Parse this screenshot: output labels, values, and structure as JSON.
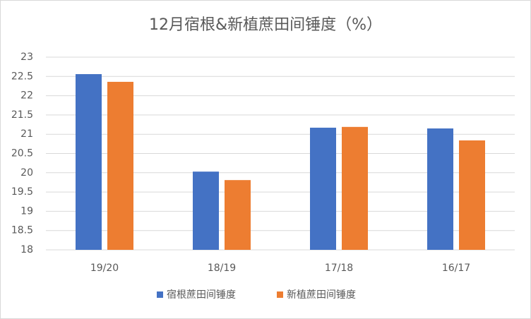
{
  "chart_data": {
    "type": "bar",
    "title": "12月宿根&新植蔗田间锤度（%）",
    "categories": [
      "19/20",
      "18/19",
      "17/18",
      "16/17"
    ],
    "series": [
      {
        "name": "宿根蔗田间锤度",
        "color": "#4472c4",
        "values": [
          22.56,
          20.03,
          21.17,
          21.15
        ]
      },
      {
        "name": "新植蔗田间锤度",
        "color": "#ed7d31",
        "values": [
          22.36,
          19.81,
          21.19,
          20.84
        ]
      }
    ],
    "ylim": [
      18,
      23
    ],
    "yticks": [
      18,
      18.5,
      19,
      19.5,
      20,
      20.5,
      21,
      21.5,
      22,
      22.5,
      23
    ],
    "grid": true,
    "legend": "bottom"
  }
}
